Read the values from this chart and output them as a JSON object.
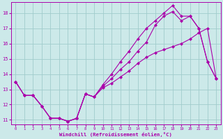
{
  "xlabel": "Windchill (Refroidissement éolien,°C)",
  "xlim": [
    -0.5,
    23.5
  ],
  "ylim": [
    10.7,
    18.7
  ],
  "yticks": [
    11,
    12,
    13,
    14,
    15,
    16,
    17,
    18
  ],
  "xticks": [
    0,
    1,
    2,
    3,
    4,
    5,
    6,
    7,
    8,
    9,
    10,
    11,
    12,
    13,
    14,
    15,
    16,
    17,
    18,
    19,
    20,
    21,
    22,
    23
  ],
  "bg_color": "#cce9e9",
  "grid_color": "#a0cccc",
  "line_color": "#aa00aa",
  "line1_x": [
    0,
    1,
    2,
    3,
    4,
    5,
    6,
    7,
    8,
    9,
    10,
    11,
    12,
    13,
    14,
    15,
    16,
    17,
    18,
    19,
    20,
    21,
    22,
    23
  ],
  "line1_y": [
    13.5,
    12.6,
    12.6,
    11.9,
    11.1,
    11.1,
    10.9,
    11.1,
    12.7,
    12.5,
    13.1,
    13.4,
    13.8,
    14.2,
    14.7,
    15.1,
    15.4,
    15.6,
    15.8,
    16.0,
    16.3,
    16.7,
    17.0,
    13.7
  ],
  "line2_x": [
    0,
    1,
    2,
    3,
    4,
    5,
    6,
    7,
    8,
    9,
    10,
    11,
    12,
    13,
    14,
    15,
    16,
    17,
    18,
    19,
    20,
    21,
    22,
    23
  ],
  "line2_y": [
    13.5,
    12.6,
    12.6,
    11.9,
    11.1,
    11.1,
    10.9,
    11.1,
    12.7,
    12.5,
    13.3,
    14.0,
    14.8,
    15.5,
    16.3,
    17.0,
    17.5,
    18.0,
    18.5,
    17.8,
    17.8,
    17.0,
    14.8,
    13.7
  ],
  "line3_x": [
    0,
    1,
    2,
    3,
    4,
    5,
    6,
    7,
    8,
    9,
    10,
    11,
    12,
    13,
    14,
    15,
    16,
    17,
    18,
    19,
    20,
    21,
    22,
    23
  ],
  "line3_y": [
    13.5,
    12.6,
    12.6,
    11.9,
    11.1,
    11.1,
    10.9,
    11.1,
    12.7,
    12.5,
    13.2,
    13.7,
    14.3,
    14.8,
    15.5,
    16.1,
    17.2,
    17.8,
    18.1,
    17.5,
    17.8,
    17.0,
    14.8,
    13.7
  ]
}
